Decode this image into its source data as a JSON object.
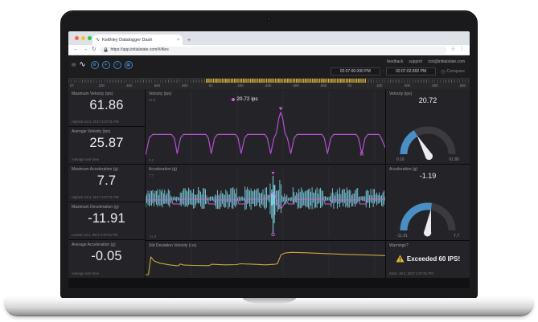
{
  "browser": {
    "tab_title": "Keithley Datalogger Dash",
    "tab_close": "×",
    "new_tab": "+",
    "url": "https://app.initialstate.com/#/tiles"
  },
  "icons": {
    "back": "←",
    "forward": "→",
    "refresh": "↻",
    "star": "☆",
    "menu": "⋮",
    "logo": "∿",
    "sidebar": "▤",
    "gear": "⚙",
    "nodes": "✶",
    "waves": "≈",
    "apps": "▦",
    "clock": "◷"
  },
  "header": {
    "links": [
      "feedback",
      "support",
      "rick@initialstate.com"
    ],
    "time_start": "02:07:00.000 PM",
    "time_separator": ":",
    "time_end": "02:07:02.892 PM",
    "compare_label": "Compare"
  },
  "ruler": {
    "labels": [
      "07",
      ".200",
      ".400",
      ".600",
      ".800",
      "01",
      ".200",
      ".400",
      ".600",
      ".800",
      "02",
      ".200",
      ".400",
      ".600",
      ".800"
    ]
  },
  "tiles": {
    "stats": [
      {
        "title": "Maximum Velocity (ips)",
        "value": "61.86",
        "caption": "Highest Jul 2, 2017 2:07:01 PM"
      },
      {
        "title": "Average Velocity (ips)",
        "value": "25.87",
        "caption": "Average over time"
      },
      {
        "title": "Maximum Acceleration (g)",
        "value": "7.7",
        "caption": "Highest Jul 2, 2017 2:07:01 PM"
      },
      {
        "title": "Maximum Deceleration (g)",
        "value": "-11.91",
        "caption": "Lowest Jul 2, 2017 2:07:01 PM"
      },
      {
        "title": "Average Acceleration (g)",
        "value": "-0.05",
        "caption": "Average over time"
      }
    ],
    "gauges": [
      {
        "title": "Velocity (ips)",
        "value": "20.72",
        "min": "0.16",
        "max": "61.86"
      },
      {
        "title": "Acceleration (g)",
        "value": "-1.19",
        "min": "-11.91",
        "max": "7.7"
      }
    ],
    "warning": {
      "title": "Warnings?",
      "text": "Exceeded 60 IPS!",
      "caption": "Since Jul 2, 2017 2:07:01 PM"
    }
  },
  "colors": {
    "accent_blue": "#4a8fc4",
    "magenta": "#b44fd0",
    "cyan": "#82d8ea",
    "yellow": "#c9a83d",
    "warning_yellow": "#e8b63e",
    "marker_pink": "#d855ec"
  },
  "chart_data": [
    {
      "id": "velocity",
      "type": "line",
      "title": "Velocity (ips)",
      "color": "#b44fd0",
      "ylim": [
        0,
        62
      ],
      "y_axis_labels": [
        "61.9",
        "0.2"
      ],
      "tooltip": {
        "text": "20.72 ips"
      },
      "peak_marker_x": 56.4,
      "low_marker_x": 90.2,
      "points": [
        [
          0,
          2
        ],
        [
          1.6,
          26
        ],
        [
          3,
          30
        ],
        [
          10.8,
          30
        ],
        [
          12,
          25
        ],
        [
          13.2,
          4
        ],
        [
          14.6,
          25
        ],
        [
          15.8,
          30
        ],
        [
          25.2,
          30
        ],
        [
          26.2,
          25
        ],
        [
          27.4,
          4
        ],
        [
          28.8,
          25
        ],
        [
          30,
          30
        ],
        [
          37.6,
          30
        ],
        [
          38.6,
          25
        ],
        [
          39.9,
          4
        ],
        [
          41.3,
          25
        ],
        [
          42.5,
          30
        ],
        [
          49.8,
          30
        ],
        [
          50.8,
          25
        ],
        [
          52.2,
          4
        ],
        [
          53.6,
          25
        ],
        [
          54.6,
          32
        ],
        [
          55.6,
          52
        ],
        [
          56.4,
          60
        ],
        [
          57.2,
          52
        ],
        [
          58.2,
          32
        ],
        [
          59.2,
          25
        ],
        [
          60.6,
          4
        ],
        [
          62,
          25
        ],
        [
          63.2,
          30
        ],
        [
          73.6,
          30
        ],
        [
          74.6,
          25
        ],
        [
          75.9,
          4
        ],
        [
          77.3,
          25
        ],
        [
          78.5,
          30
        ],
        [
          87.9,
          30
        ],
        [
          88.9,
          25
        ],
        [
          90.2,
          4
        ],
        [
          91.6,
          25
        ],
        [
          92.8,
          30
        ],
        [
          97.4,
          30
        ],
        [
          98.4,
          25
        ],
        [
          100,
          12
        ]
      ]
    },
    {
      "id": "acceleration",
      "type": "noise-band",
      "title": "Acceleration (g)",
      "band_color": "#82d8ea",
      "line_color": "#c06ad0",
      "y_axis_labels": [
        "7.7",
        "-11.9"
      ],
      "envelope": [
        [
          0,
          11,
          13
        ],
        [
          11,
          14.5,
          4
        ],
        [
          14.5,
          26,
          15
        ],
        [
          26,
          29,
          4
        ],
        [
          29,
          38.5,
          15
        ],
        [
          38.5,
          41.5,
          4
        ],
        [
          41.5,
          51,
          16
        ],
        [
          51,
          52,
          6
        ],
        [
          52,
          57,
          24
        ],
        [
          57,
          59.5,
          8
        ],
        [
          59.5,
          61.5,
          4
        ],
        [
          61.5,
          74.5,
          15
        ],
        [
          74.5,
          77.5,
          4
        ],
        [
          77.5,
          89,
          15
        ],
        [
          89,
          92,
          4
        ],
        [
          92,
          100,
          13
        ]
      ],
      "spike": {
        "x": 53.2,
        "down": 42,
        "up": 29
      },
      "line_points": [
        [
          0,
          1
        ],
        [
          11,
          1
        ],
        [
          11.4,
          6
        ],
        [
          14.4,
          6
        ],
        [
          14.8,
          0
        ],
        [
          26,
          0
        ],
        [
          26.4,
          6
        ],
        [
          29,
          6
        ],
        [
          29.4,
          1
        ],
        [
          38.5,
          1
        ],
        [
          38.9,
          6
        ],
        [
          41.5,
          6
        ],
        [
          41.9,
          0
        ],
        [
          50,
          0
        ],
        [
          51.5,
          -3
        ],
        [
          53,
          -8
        ],
        [
          54,
          -6
        ],
        [
          54.8,
          3
        ],
        [
          55.8,
          9
        ],
        [
          56.8,
          11
        ],
        [
          57.8,
          6
        ],
        [
          58.8,
          2
        ],
        [
          59.6,
          6
        ],
        [
          61.5,
          6
        ],
        [
          61.9,
          0
        ],
        [
          74.5,
          0
        ],
        [
          74.9,
          6
        ],
        [
          77.5,
          6
        ],
        [
          77.9,
          1
        ],
        [
          89,
          1
        ],
        [
          89.4,
          6
        ],
        [
          92,
          6
        ],
        [
          92.4,
          0
        ],
        [
          100,
          0
        ]
      ]
    },
    {
      "id": "stddev",
      "type": "line",
      "title": "Std Deviation Velocity (ips)",
      "color": "#c9a83d",
      "points_pct": [
        [
          0,
          97
        ],
        [
          1.2,
          97
        ],
        [
          2.2,
          30
        ],
        [
          3.5,
          45
        ],
        [
          6,
          54
        ],
        [
          10,
          60
        ],
        [
          13.5,
          64
        ],
        [
          14.5,
          57
        ],
        [
          16,
          61
        ],
        [
          20,
          62
        ],
        [
          26.5,
          63
        ],
        [
          27.5,
          58
        ],
        [
          33,
          60
        ],
        [
          38,
          59
        ],
        [
          39.5,
          56
        ],
        [
          45,
          58
        ],
        [
          50,
          60
        ],
        [
          54,
          58
        ],
        [
          55,
          56
        ],
        [
          56.5,
          22
        ],
        [
          58.5,
          15
        ],
        [
          61,
          13
        ],
        [
          68,
          15
        ],
        [
          76,
          18
        ],
        [
          85,
          21
        ],
        [
          93,
          23
        ],
        [
          100,
          25
        ]
      ]
    }
  ]
}
